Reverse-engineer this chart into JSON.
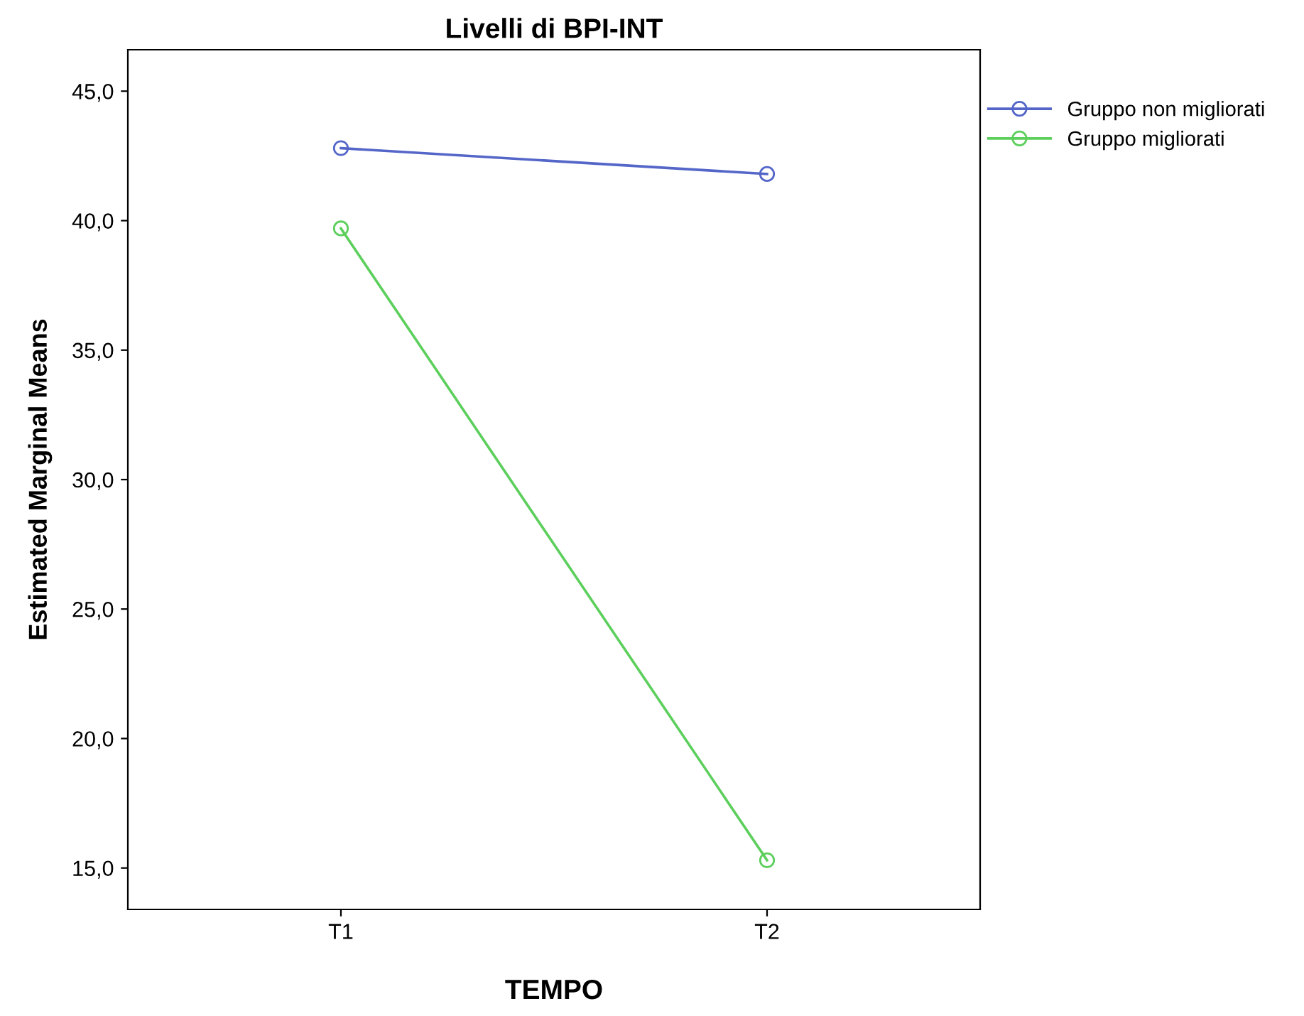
{
  "chart_data": {
    "type": "line",
    "title": "Livelli di BPI-INT",
    "xlabel": "TEMPO",
    "ylabel": "Estimated Marginal Means",
    "categories": [
      "T1",
      "T2"
    ],
    "series": [
      {
        "name": "Gruppo non migliorati",
        "color": "#5466c8",
        "values": [
          42.8,
          41.8
        ]
      },
      {
        "name": "Gruppo migliorati",
        "color": "#5ccf5c",
        "values": [
          39.7,
          15.3
        ]
      }
    ],
    "ylim": [
      13.4,
      46.6
    ],
    "yticks": [
      {
        "value": 15,
        "label": "15,0"
      },
      {
        "value": 20,
        "label": "20,0"
      },
      {
        "value": 25,
        "label": "25,0"
      },
      {
        "value": 30,
        "label": "30,0"
      },
      {
        "value": 35,
        "label": "35,0"
      },
      {
        "value": 40,
        "label": "40,0"
      },
      {
        "value": 45,
        "label": "45,0"
      }
    ],
    "grid": false,
    "legend": "top right",
    "marker": "circle",
    "line_style": "solid"
  }
}
